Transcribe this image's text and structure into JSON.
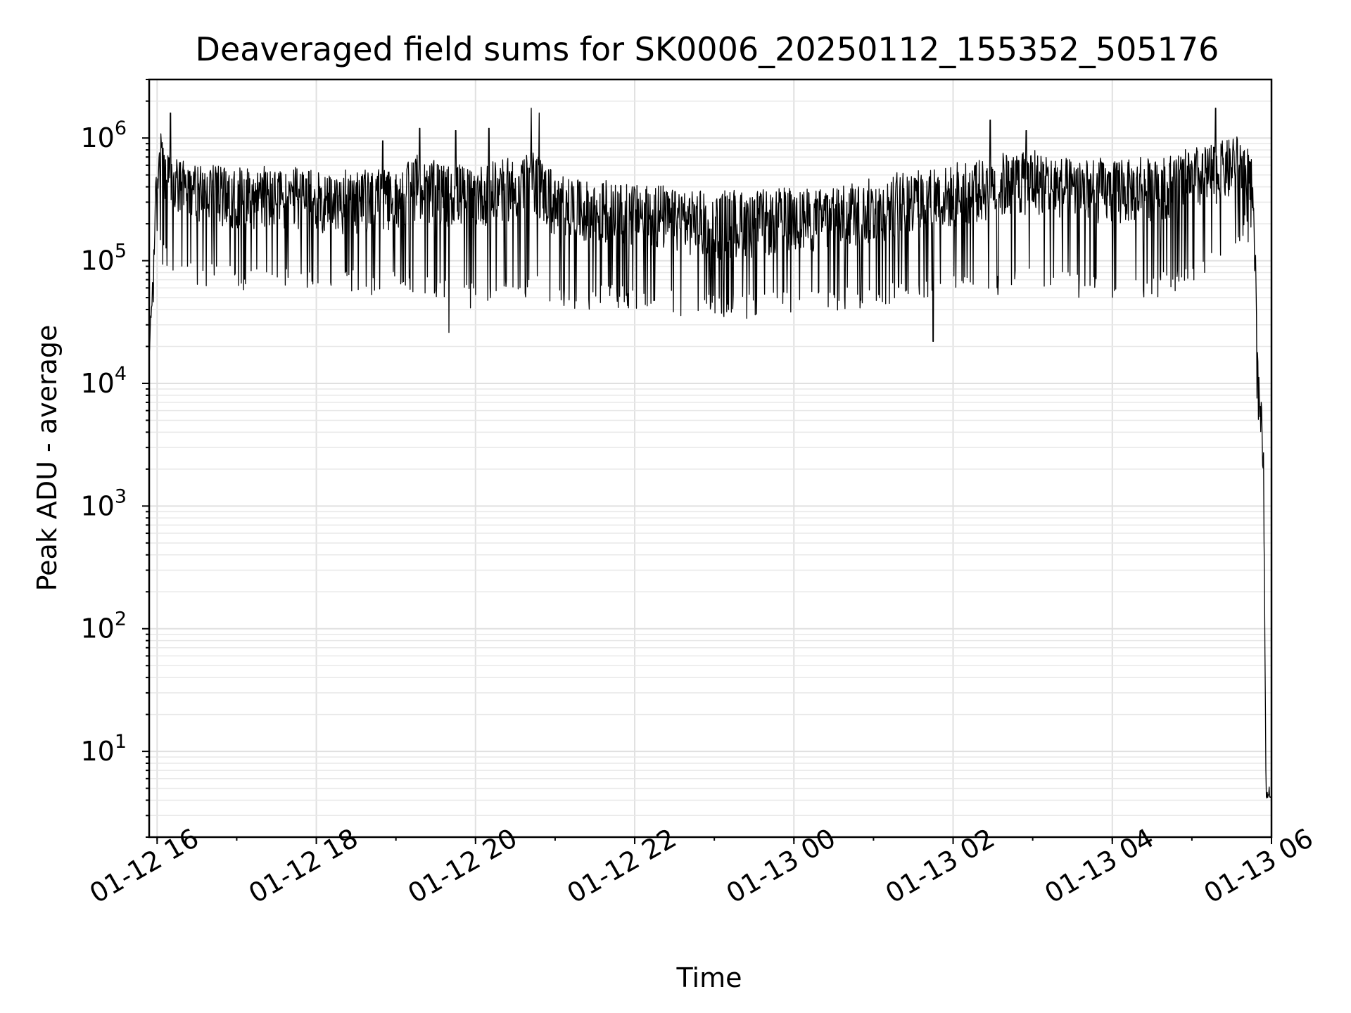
{
  "chart_data": {
    "type": "line",
    "title": "Deaveraged field sums for SK0006_20250112_155352_505176",
    "xlabel": "Time",
    "ylabel": "Peak ADU - average",
    "yscale": "log",
    "grid": "on (major and minor)",
    "x_ticks": [
      "01-12 16",
      "01-12 18",
      "01-12 20",
      "01-12 22",
      "01-13 00",
      "01-13 02",
      "01-13 04",
      "01-13 06"
    ],
    "y_ticks": [
      {
        "base": "10",
        "exp": "1"
      },
      {
        "base": "10",
        "exp": "2"
      },
      {
        "base": "10",
        "exp": "3"
      },
      {
        "base": "10",
        "exp": "4"
      },
      {
        "base": "10",
        "exp": "5"
      },
      {
        "base": "10",
        "exp": "6"
      }
    ],
    "xlim": [
      "01-12 15:54",
      "01-13 06:00"
    ],
    "ylim": [
      2,
      3000000
    ],
    "color": "#000000",
    "series": [
      {
        "x": [
          "01-12 15:54",
          "01-12 15:56",
          "01-12 15:58",
          "01-12 16:00",
          "01-12 16:03",
          "01-12 16:06",
          "01-12 16:10",
          "01-12 16:15",
          "01-12 16:30",
          "01-12 17:00",
          "01-12 17:30",
          "01-12 18:00",
          "01-12 18:30",
          "01-12 19:00",
          "01-12 19:15",
          "01-12 19:30",
          "01-12 20:00",
          "01-12 20:30",
          "01-12 20:45",
          "01-12 21:00",
          "01-12 21:30",
          "01-12 22:00",
          "01-12 22:30",
          "01-12 23:00",
          "01-12 23:30",
          "01-13 00:00",
          "01-13 00:30",
          "01-13 01:00",
          "01-13 01:30",
          "01-13 02:00",
          "01-13 02:30",
          "01-13 03:00",
          "01-13 03:30",
          "01-13 04:00",
          "01-13 04:30",
          "01-13 05:00",
          "01-13 05:15",
          "01-13 05:30",
          "01-13 05:40",
          "01-13 05:45",
          "01-13 05:48",
          "01-13 05:50",
          "01-13 05:52",
          "01-13 05:54",
          "01-13 05:56",
          "01-13 06:00"
        ],
        "values": [
          12000,
          40000,
          120000,
          600000,
          700000,
          550000,
          450000,
          400000,
          350000,
          330000,
          320000,
          300000,
          290000,
          310000,
          380000,
          340000,
          330000,
          380000,
          420000,
          260000,
          240000,
          230000,
          200000,
          170000,
          180000,
          200000,
          210000,
          240000,
          300000,
          320000,
          380000,
          420000,
          360000,
          340000,
          370000,
          420000,
          500000,
          550000,
          650000,
          300000,
          60000,
          10000,
          5000,
          1500,
          4,
          4
        ],
        "band_low": [
          12000,
          30000,
          80000,
          150000,
          120000,
          100000,
          90000,
          80000,
          75000,
          70000,
          70000,
          68000,
          66000,
          64000,
          70000,
          55000,
          50000,
          56000,
          60000,
          52000,
          50000,
          48000,
          45000,
          42000,
          42000,
          44000,
          46000,
          50000,
          55000,
          60000,
          65000,
          70000,
          62000,
          60000,
          62000,
          70000,
          90000,
          120000,
          200000,
          150000,
          30000,
          3000,
          2500,
          1000,
          4,
          4
        ],
        "band_high": [
          20000,
          60000,
          200000,
          1100000,
          1200000,
          800000,
          700000,
          650000,
          600000,
          580000,
          560000,
          540000,
          520000,
          560000,
          700000,
          620000,
          600000,
          700000,
          800000,
          480000,
          440000,
          420000,
          380000,
          360000,
          360000,
          380000,
          400000,
          450000,
          550000,
          600000,
          700000,
          780000,
          680000,
          650000,
          700000,
          780000,
          900000,
          1000000,
          1000000,
          700000,
          120000,
          12000,
          9000,
          3000,
          4.5,
          4.5
        ],
        "spikes": [
          {
            "x": "01-12 16:10",
            "value": 1600000
          },
          {
            "x": "01-12 18:50",
            "value": 950000
          },
          {
            "x": "01-12 19:18",
            "value": 1200000
          },
          {
            "x": "01-12 19:45",
            "value": 1150000
          },
          {
            "x": "01-12 20:10",
            "value": 1200000
          },
          {
            "x": "01-12 20:42",
            "value": 1750000
          },
          {
            "x": "01-12 20:48",
            "value": 1600000
          },
          {
            "x": "01-12 19:40",
            "value": 26000
          },
          {
            "x": "01-13 01:45",
            "value": 22000
          },
          {
            "x": "01-13 02:28",
            "value": 1400000
          },
          {
            "x": "01-13 02:55",
            "value": 1150000
          },
          {
            "x": "01-13 05:18",
            "value": 1750000
          }
        ]
      }
    ]
  }
}
